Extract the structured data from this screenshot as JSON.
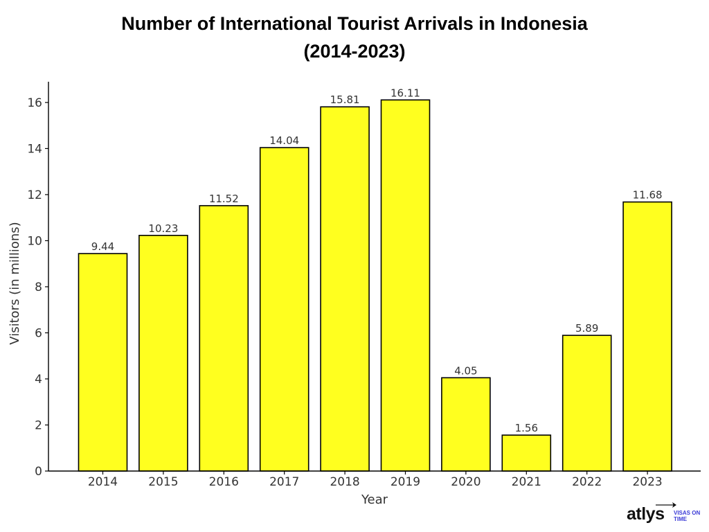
{
  "colors": {
    "bar_fill": "#ffff1f",
    "bar_stroke": "#000000",
    "axis": "#000000",
    "text": "#333333",
    "brand_word": "#111111",
    "brand_tag": "#3b3bd6"
  },
  "logo": {
    "word": "atlys",
    "tagline": "VISAS ON TIME",
    "icon": "airplane-icon"
  },
  "chart_data": {
    "type": "bar",
    "title_line1": "Number of International Tourist Arrivals in Indonesia",
    "title_line2": "(2014-2023)",
    "xlabel": "Year",
    "ylabel": "Visitors (in millions)",
    "categories": [
      "2014",
      "2015",
      "2016",
      "2017",
      "2018",
      "2019",
      "2020",
      "2021",
      "2022",
      "2023"
    ],
    "values": [
      9.44,
      10.23,
      11.52,
      14.04,
      15.81,
      16.11,
      4.05,
      1.56,
      5.89,
      11.68
    ],
    "value_labels": [
      "9.44",
      "10.23",
      "11.52",
      "14.04",
      "15.81",
      "16.11",
      "4.05",
      "1.56",
      "5.89",
      "11.68"
    ],
    "yticks": [
      0,
      2,
      4,
      6,
      8,
      10,
      12,
      14,
      16
    ],
    "ylim": [
      0,
      16.9
    ],
    "grid": false,
    "legend": "none"
  }
}
